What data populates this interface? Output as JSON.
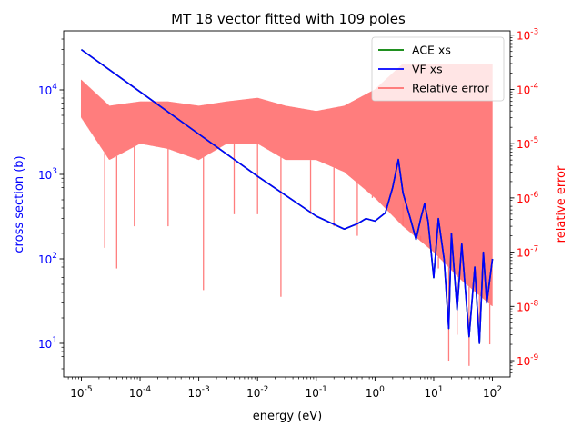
{
  "chart_data": {
    "type": "line",
    "title": "MT 18 vector fitted with 109 poles",
    "xlabel": "energy (eV)",
    "ylabel": "cross section (b)",
    "y2label": "relative error",
    "xscale": "log",
    "yscale": "log",
    "y2scale": "log",
    "xlim": [
      5e-06,
      200
    ],
    "ylim": [
      4,
      50000
    ],
    "y2lim": [
      5e-10,
      0.0012
    ],
    "grid": false,
    "legend_position": "top-right",
    "x_ticks": [
      {
        "exp": "-5",
        "value": 1e-05
      },
      {
        "exp": "-4",
        "value": 0.0001
      },
      {
        "exp": "-3",
        "value": 0.001
      },
      {
        "exp": "-2",
        "value": 0.01
      },
      {
        "exp": "-1",
        "value": 0.1
      },
      {
        "exp": "0",
        "value": 1
      },
      {
        "exp": "1",
        "value": 10
      },
      {
        "exp": "2",
        "value": 100
      }
    ],
    "y_ticks": [
      {
        "exp": "1",
        "value": 10
      },
      {
        "exp": "2",
        "value": 100
      },
      {
        "exp": "3",
        "value": 1000
      },
      {
        "exp": "4",
        "value": 10000
      }
    ],
    "y2_ticks": [
      {
        "exp": "-9",
        "value": 1e-09
      },
      {
        "exp": "-8",
        "value": 1e-08
      },
      {
        "exp": "-7",
        "value": 1e-07
      },
      {
        "exp": "-6",
        "value": 1e-06
      },
      {
        "exp": "-5",
        "value": 1e-05
      },
      {
        "exp": "-4",
        "value": 0.0001
      },
      {
        "exp": "-3",
        "value": 0.001
      }
    ],
    "series": [
      {
        "name": "ACE xs",
        "axis": "left",
        "color": "#008000",
        "x": [
          1e-05,
          0.0001,
          0.001,
          0.01,
          0.1,
          0.3,
          0.5,
          0.7,
          1.0,
          1.5,
          2.0,
          2.5,
          3.0,
          4.0,
          5.0,
          6.0,
          7.0,
          8.0,
          10.0,
          12.0,
          15.0,
          18.0,
          20.0,
          25.0,
          30.0,
          40.0,
          50.0,
          60.0,
          70.0,
          80.0,
          100.0
        ],
        "y": [
          30000,
          9500,
          3000,
          950,
          320,
          225,
          260,
          300,
          280,
          350,
          700,
          1500,
          600,
          300,
          170,
          300,
          450,
          280,
          60,
          300,
          100,
          15,
          200,
          25,
          150,
          12,
          80,
          10,
          120,
          30,
          100
        ]
      },
      {
        "name": "VF xs",
        "axis": "left",
        "color": "#0000ff",
        "x": [
          1e-05,
          0.0001,
          0.001,
          0.01,
          0.1,
          0.3,
          0.5,
          0.7,
          1.0,
          1.5,
          2.0,
          2.5,
          3.0,
          4.0,
          5.0,
          6.0,
          7.0,
          8.0,
          10.0,
          12.0,
          15.0,
          18.0,
          20.0,
          25.0,
          30.0,
          40.0,
          50.0,
          60.0,
          70.0,
          80.0,
          100.0
        ],
        "y": [
          30000,
          9500,
          3000,
          950,
          320,
          225,
          260,
          300,
          280,
          350,
          700,
          1500,
          600,
          300,
          170,
          300,
          450,
          280,
          60,
          300,
          100,
          15,
          200,
          25,
          150,
          12,
          80,
          10,
          120,
          30,
          100
        ]
      },
      {
        "name": "Relative error",
        "axis": "right",
        "color": "#ff6f6f",
        "x": [
          1e-05,
          3e-05,
          0.0001,
          0.0003,
          0.001,
          0.003,
          0.01,
          0.03,
          0.1,
          0.3,
          1.0,
          3.0,
          10.0,
          30.0,
          100.0
        ],
        "y": [
          0.00015,
          5e-05,
          6e-05,
          6e-05,
          5e-05,
          6e-05,
          7e-05,
          5e-05,
          4e-05,
          5e-05,
          0.0001,
          0.0003,
          0.0003,
          0.0003,
          0.0003
        ],
        "y_low": [
          3e-05,
          5e-06,
          1e-05,
          8e-06,
          5e-06,
          1e-05,
          1e-05,
          5e-06,
          5e-06,
          3e-06,
          1e-06,
          3e-07,
          1e-07,
          3e-08,
          1e-08
        ],
        "dips": [
          {
            "x": 2.5e-05,
            "y": 1.2e-07
          },
          {
            "x": 4e-05,
            "y": 5e-08
          },
          {
            "x": 8e-05,
            "y": 3e-07
          },
          {
            "x": 0.0003,
            "y": 3e-07
          },
          {
            "x": 0.0012,
            "y": 2e-08
          },
          {
            "x": 0.004,
            "y": 5e-07
          },
          {
            "x": 0.01,
            "y": 5e-07
          },
          {
            "x": 0.025,
            "y": 1.5e-08
          },
          {
            "x": 0.08,
            "y": 5e-07
          },
          {
            "x": 0.2,
            "y": 3e-07
          },
          {
            "x": 0.5,
            "y": 2e-07
          },
          {
            "x": 0.9,
            "y": 1e-06
          },
          {
            "x": 3.0,
            "y": 8e-07
          },
          {
            "x": 6.0,
            "y": 2e-07
          },
          {
            "x": 12.0,
            "y": 5e-08
          },
          {
            "x": 18.0,
            "y": 1e-09
          },
          {
            "x": 25.0,
            "y": 3e-09
          },
          {
            "x": 40.0,
            "y": 8e-10
          },
          {
            "x": 60.0,
            "y": 5e-09
          },
          {
            "x": 90.0,
            "y": 2e-09
          }
        ]
      }
    ]
  }
}
